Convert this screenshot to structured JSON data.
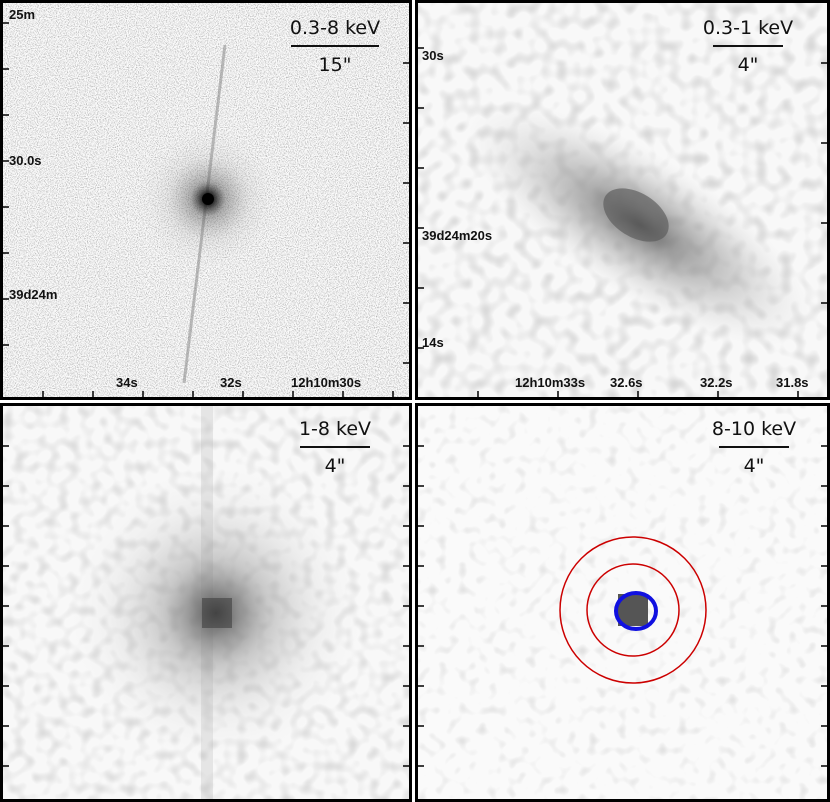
{
  "panels": [
    {
      "band": "0.3-8 keV",
      "scale": "15\"",
      "ra_ticks": [
        "34s",
        "32s",
        "12h10m30s"
      ],
      "dec_ticks": [
        "25m",
        "30.0s",
        "39d24m"
      ]
    },
    {
      "band": "0.3-1 keV",
      "scale": "4\"",
      "ra_ticks": [
        "12h10m33s",
        "32.6s",
        "32.2s",
        "31.8s"
      ],
      "dec_ticks": [
        "30s",
        "39d24m20s",
        "14s"
      ]
    },
    {
      "band": "1-8 keV",
      "scale": "4\""
    },
    {
      "band": "8-10 keV",
      "scale": "4\"",
      "annulus_color": "#cc0000",
      "contour_color": "#1010e0"
    }
  ]
}
